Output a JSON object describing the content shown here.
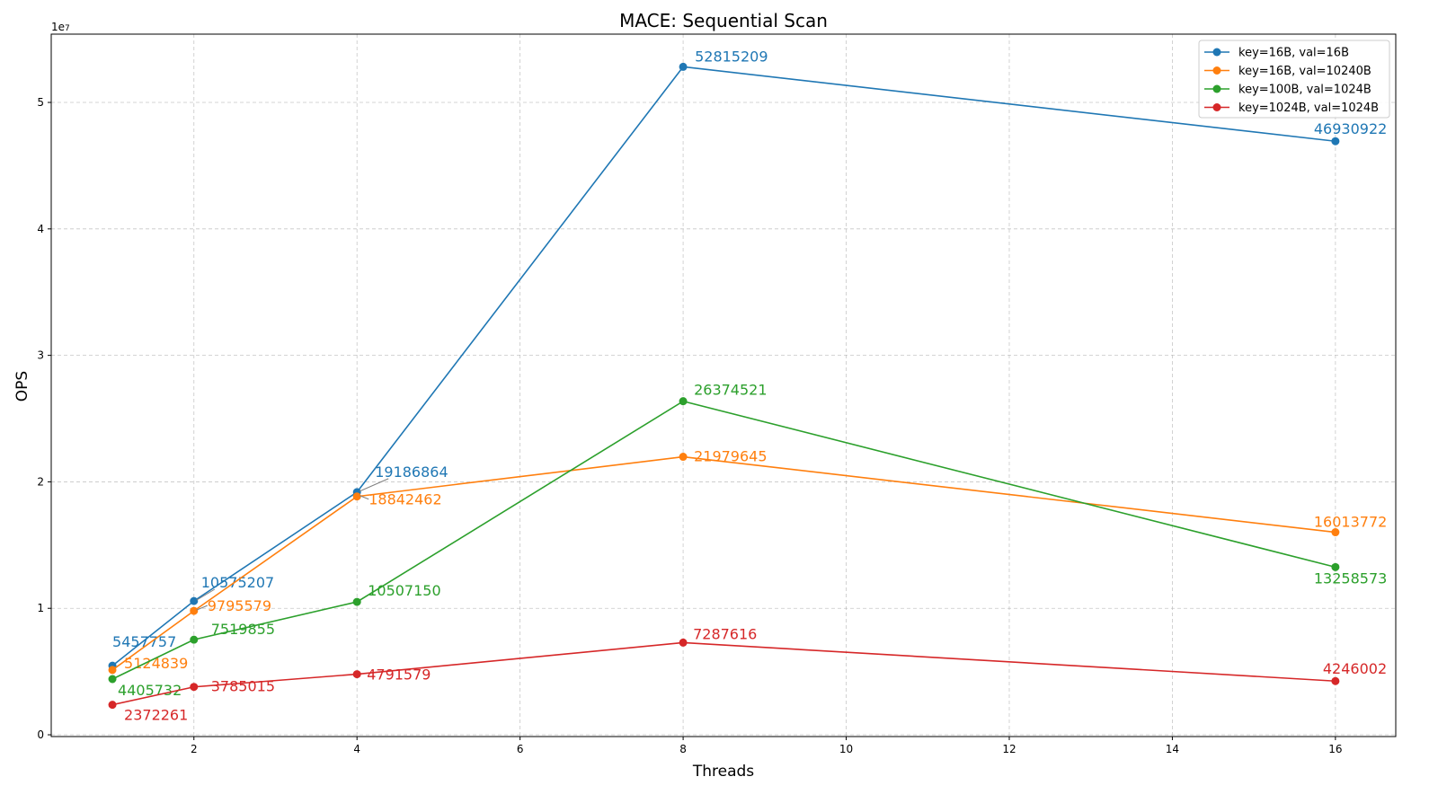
{
  "chart_data": {
    "type": "line",
    "title": "MACE: Sequential Scan",
    "xlabel": "Threads",
    "ylabel": "OPS",
    "y_offset_text": "1e7",
    "x": [
      1,
      2,
      4,
      8,
      16
    ],
    "xlim": [
      0.25,
      16.74
    ],
    "ylim": [
      -140000,
      55400000
    ],
    "xticks": [
      2,
      4,
      6,
      8,
      10,
      12,
      14,
      16
    ],
    "yticks": [
      0,
      10000000,
      20000000,
      30000000,
      40000000,
      50000000
    ],
    "ytick_labels": [
      "0",
      "1",
      "2",
      "3",
      "4",
      "5"
    ],
    "grid": true,
    "legend_position": "top-right",
    "series": [
      {
        "name": "key=16B, val=16B",
        "color": "#1f77b4",
        "values": [
          5457757,
          10575207,
          19186864,
          52815209,
          46930922
        ]
      },
      {
        "name": "key=16B, val=10240B",
        "color": "#ff7f0e",
        "values": [
          5124839,
          9795579,
          18842462,
          21979645,
          16013772
        ]
      },
      {
        "name": "key=100B, val=1024B",
        "color": "#2ca02c",
        "values": [
          4405732,
          7519855,
          10507150,
          26374521,
          13258573
        ]
      },
      {
        "name": "key=1024B, val=1024B",
        "color": "#d62728",
        "values": [
          2372261,
          3785015,
          4791579,
          7287616,
          4246002
        ]
      }
    ]
  }
}
